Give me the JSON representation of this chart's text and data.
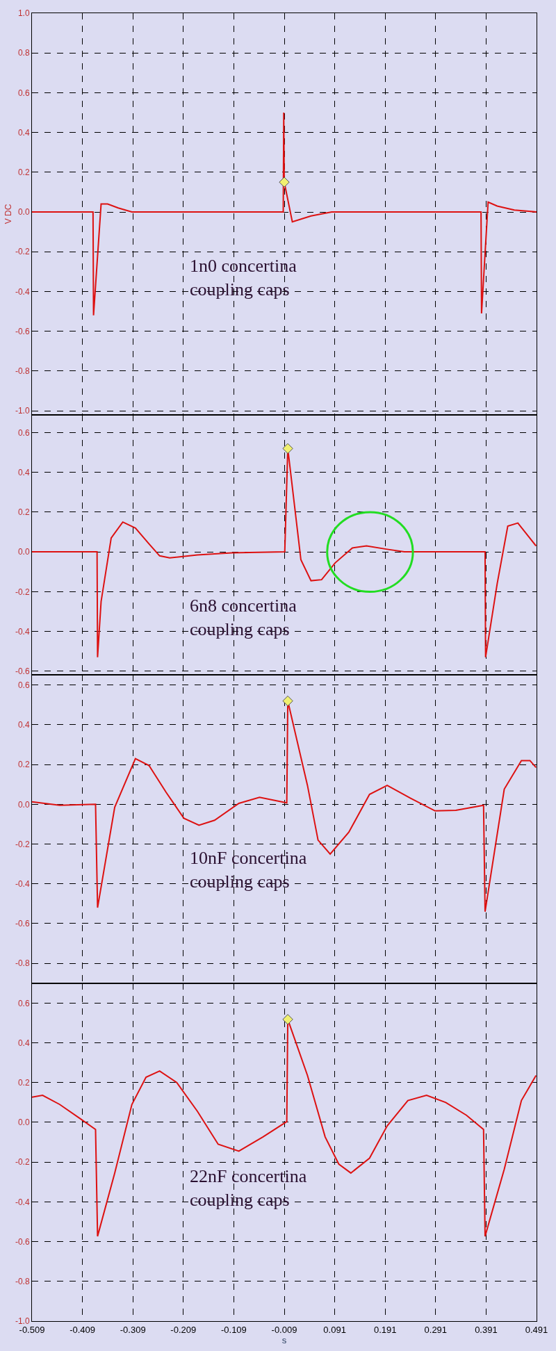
{
  "chart_data": [
    {
      "type": "line",
      "ylabel": "V DC",
      "xlim": [
        -0.509,
        0.491
      ],
      "xticks": [
        -0.509,
        -0.409,
        -0.309,
        -0.209,
        -0.109,
        -0.009,
        0.091,
        0.191,
        0.291,
        0.391,
        0.491
      ],
      "ylim": [
        -1.02,
        1.0
      ],
      "yticks": [
        {
          "value": -1,
          "label": "-1.0"
        },
        -0.8,
        -0.6,
        -0.4,
        -0.2,
        {
          "value": 0,
          "label": "0.0"
        },
        0.2,
        0.4,
        0.6,
        0.8,
        {
          "value": 1,
          "label": "1.0"
        }
      ],
      "grid": true,
      "tick_labels": "y",
      "annotations": [
        "1n0 concertina\ncoupling caps"
      ],
      "series": [
        {
          "color": "#dd1111",
          "x": [
            -0.509,
            -0.388,
            -0.387,
            -0.372,
            -0.359,
            -0.338,
            -0.311,
            -0.011,
            -0.01,
            -0.009,
            0.007,
            0.044,
            0.085,
            0.381,
            0.382,
            0.395,
            0.413,
            0.447,
            0.491
          ],
          "values": [
            0.0,
            0.0,
            -0.52,
            0.04,
            0.04,
            0.02,
            0.0,
            0.0,
            0.5,
            0.15,
            -0.05,
            -0.02,
            0.0,
            0.0,
            -0.51,
            0.05,
            0.03,
            0.01,
            0.0
          ]
        },
        {
          "type": "scatter",
          "marker": "diamond",
          "color": "#f0f070",
          "x": [
            -0.009
          ],
          "values": [
            0.15
          ]
        }
      ]
    },
    {
      "type": "line",
      "xlim": [
        -0.509,
        0.491
      ],
      "xticks": [
        -0.509,
        -0.409,
        -0.309,
        -0.209,
        -0.109,
        -0.009,
        0.091,
        0.191,
        0.291,
        0.391,
        0.491
      ],
      "ylim": [
        -0.62,
        0.69
      ],
      "yticks": [
        -0.6,
        -0.4,
        -0.2,
        {
          "value": 0,
          "label": "0.0"
        },
        0.2,
        0.4,
        0.6
      ],
      "grid": true,
      "tick_labels": "y",
      "annotations": [
        "6n8 concertina\ncoupling caps"
      ],
      "series": [
        {
          "color": "#dd1111",
          "x": [
            -0.509,
            -0.38,
            -0.379,
            -0.372,
            -0.352,
            -0.329,
            -0.304,
            -0.277,
            -0.256,
            -0.236,
            -0.181,
            -0.113,
            -0.008,
            -0.002,
            0.024,
            0.044,
            0.065,
            0.092,
            0.126,
            0.154,
            0.195,
            0.229,
            0.389,
            0.39,
            0.413,
            0.434,
            0.454,
            0.49
          ],
          "values": [
            0.0,
            0.0,
            -0.53,
            -0.25,
            0.07,
            0.15,
            0.12,
            0.04,
            -0.02,
            -0.03,
            -0.015,
            -0.005,
            0.0,
            0.52,
            -0.04,
            -0.145,
            -0.14,
            -0.055,
            0.02,
            0.03,
            0.013,
            0.0,
            0.0,
            -0.53,
            -0.16,
            0.13,
            0.145,
            0.03
          ]
        },
        {
          "type": "scatter",
          "marker": "diamond",
          "color": "#f0f070",
          "x": [
            -0.002
          ],
          "values": [
            0.52
          ]
        }
      ]
    },
    {
      "type": "line",
      "xlim": [
        -0.509,
        0.491
      ],
      "xticks": [
        -0.509,
        -0.409,
        -0.309,
        -0.209,
        -0.109,
        -0.009,
        0.091,
        0.191,
        0.291,
        0.391,
        0.491
      ],
      "ylim": [
        -0.9,
        0.65
      ],
      "yticks": [
        -0.8,
        -0.6,
        -0.4,
        -0.2,
        {
          "value": 0,
          "label": "0.0"
        },
        0.2,
        0.4,
        0.6
      ],
      "grid": true,
      "tick_labels": "y",
      "annotations": [
        "10nF concertina\ncoupling caps"
      ],
      "series": [
        {
          "color": "#dd1111",
          "x": [
            -0.509,
            -0.454,
            -0.383,
            -0.379,
            -0.345,
            -0.304,
            -0.277,
            -0.243,
            -0.208,
            -0.178,
            -0.147,
            -0.099,
            -0.058,
            -0.004,
            -0.002,
            0.037,
            0.058,
            0.082,
            0.119,
            0.16,
            0.195,
            0.242,
            0.29,
            0.331,
            0.386,
            0.389,
            0.427,
            0.461,
            0.478,
            0.49
          ],
          "values": [
            0.013,
            -0.005,
            0.0,
            -0.52,
            -0.015,
            0.23,
            0.195,
            0.06,
            -0.07,
            -0.105,
            -0.08,
            0.005,
            0.035,
            0.007,
            0.52,
            0.095,
            -0.18,
            -0.25,
            -0.14,
            0.05,
            0.095,
            0.03,
            -0.033,
            -0.03,
            -0.005,
            -0.54,
            0.076,
            0.22,
            0.22,
            0.185
          ]
        },
        {
          "type": "scatter",
          "marker": "diamond",
          "color": "#f0f070",
          "x": [
            -0.002
          ],
          "values": [
            0.52
          ]
        }
      ]
    },
    {
      "type": "line",
      "xlabel": "s",
      "xlim": [
        -0.509,
        0.491
      ],
      "xticks": [
        -0.509,
        -0.409,
        -0.309,
        -0.209,
        -0.109,
        -0.009,
        0.091,
        0.191,
        0.291,
        0.391,
        0.491
      ],
      "ylim": [
        -1.0,
        0.7
      ],
      "yticks": [
        {
          "value": -1,
          "label": "-1.0"
        },
        -0.8,
        -0.6,
        -0.4,
        -0.2,
        {
          "value": 0,
          "label": "0.0"
        },
        0.2,
        0.4,
        0.6
      ],
      "grid": true,
      "annotations": [
        "22nF concertina\ncoupling caps"
      ],
      "series": [
        {
          "color": "#dd1111",
          "x": [
            -0.509,
            -0.488,
            -0.454,
            -0.413,
            -0.383,
            -0.379,
            -0.345,
            -0.311,
            -0.283,
            -0.256,
            -0.222,
            -0.181,
            -0.14,
            -0.099,
            -0.051,
            -0.004,
            -0.002,
            0.037,
            0.072,
            0.099,
            0.123,
            0.16,
            0.195,
            0.236,
            0.273,
            0.311,
            0.352,
            0.386,
            0.389,
            0.427,
            0.461,
            0.49
          ],
          "values": [
            0.127,
            0.136,
            0.09,
            0.018,
            -0.036,
            -0.573,
            -0.255,
            0.09,
            0.227,
            0.258,
            0.2,
            0.055,
            -0.11,
            -0.145,
            -0.073,
            0.004,
            0.518,
            0.236,
            -0.073,
            -0.21,
            -0.255,
            -0.18,
            -0.018,
            0.11,
            0.136,
            0.1,
            0.036,
            -0.036,
            -0.573,
            -0.236,
            0.11,
            0.236
          ]
        },
        {
          "type": "scatter",
          "marker": "diamond",
          "color": "#f0f070",
          "x": [
            -0.002
          ],
          "values": [
            0.518
          ]
        }
      ]
    }
  ]
}
